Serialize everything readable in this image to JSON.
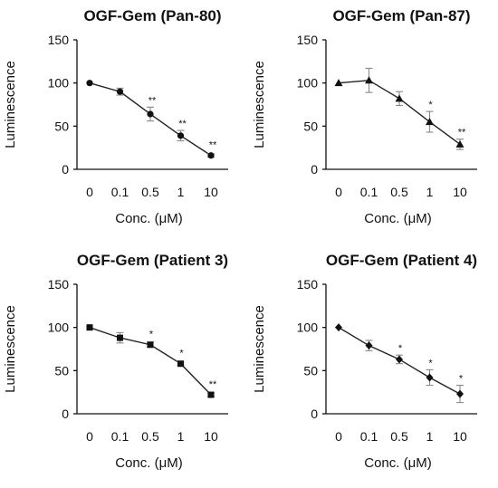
{
  "chart_data": [
    {
      "type": "line",
      "title": "OGF-Gem (Pan-80)",
      "xlabel": "Conc. (μM)",
      "ylabel": "Luminescence",
      "categories": [
        "0",
        "0.1",
        "0.5",
        "1",
        "10"
      ],
      "values": [
        100,
        90,
        64,
        39,
        16
      ],
      "errors": [
        1,
        4,
        8,
        6,
        2
      ],
      "significance": [
        "",
        "",
        "**",
        "**",
        "**"
      ],
      "marker": "circle",
      "ylim": [
        0,
        150
      ],
      "yticks": [
        0,
        50,
        100,
        150
      ],
      "grid": false
    },
    {
      "type": "line",
      "title": "OGF-Gem (Pan-87)",
      "xlabel": "Conc. (μM)",
      "ylabel": "Luminescence",
      "categories": [
        "0",
        "0.1",
        "0.5",
        "1",
        "10"
      ],
      "values": [
        100,
        103,
        82,
        55,
        29
      ],
      "errors": [
        1,
        14,
        8,
        12,
        6
      ],
      "significance": [
        "",
        "",
        "",
        "*",
        "**"
      ],
      "marker": "triangle",
      "ylim": [
        0,
        150
      ],
      "yticks": [
        0,
        50,
        100,
        150
      ],
      "grid": false
    },
    {
      "type": "line",
      "title": "OGF-Gem (Patient 3)",
      "xlabel": "Conc. (μM)",
      "ylabel": "Luminescence",
      "categories": [
        "0",
        "0.1",
        "0.5",
        "1",
        "10"
      ],
      "values": [
        100,
        88,
        80,
        58,
        22
      ],
      "errors": [
        1,
        6,
        3,
        2,
        2
      ],
      "significance": [
        "",
        "",
        "*",
        "*",
        "**"
      ],
      "marker": "square",
      "ylim": [
        0,
        150
      ],
      "yticks": [
        0,
        50,
        100,
        150
      ],
      "grid": false
    },
    {
      "type": "line",
      "title": "OGF-Gem (Patient 4)",
      "xlabel": "Conc. (μM)",
      "ylabel": "Luminescence",
      "categories": [
        "0",
        "0.1",
        "0.5",
        "1",
        "10"
      ],
      "values": [
        100,
        79,
        63,
        42,
        23
      ],
      "errors": [
        1,
        6,
        5,
        9,
        10
      ],
      "significance": [
        "",
        "",
        "*",
        "*",
        "*"
      ],
      "marker": "diamond",
      "ylim": [
        0,
        150
      ],
      "yticks": [
        0,
        50,
        100,
        150
      ],
      "grid": false
    }
  ]
}
